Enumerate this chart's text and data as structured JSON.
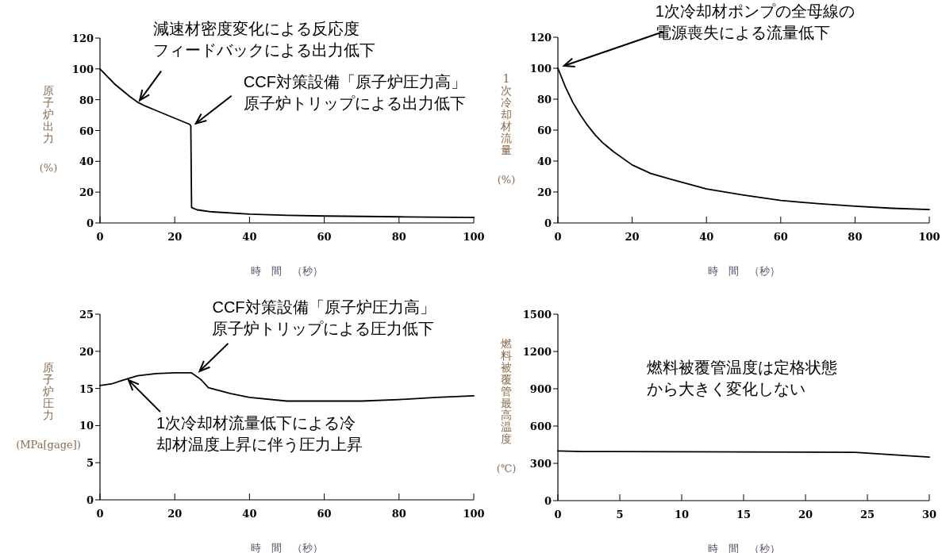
{
  "chart_data": [
    {
      "type": "line",
      "xlabel": "時　間　（秒）",
      "ylabel": "原子炉出力\n(%)",
      "xlim": [
        0,
        100
      ],
      "ylim": [
        0,
        120
      ],
      "xticks": [
        0,
        20,
        40,
        60,
        80,
        100
      ],
      "yticks": [
        0,
        20,
        40,
        60,
        80,
        100,
        120
      ],
      "series": [
        {
          "color": "#000000",
          "x": [
            0,
            2,
            4,
            6,
            8,
            10,
            12,
            15,
            20,
            24,
            24.3,
            24.5,
            26,
            30,
            40,
            50,
            60,
            80,
            100
          ],
          "values": [
            100,
            95,
            90,
            86,
            82,
            78.5,
            76,
            73,
            68,
            64,
            63,
            10,
            8.5,
            7.2,
            5.7,
            5,
            4.5,
            4,
            3.5
          ]
        }
      ],
      "annotations": [
        {
          "text": "減速材密度変化による反応度フィードバックによる出力低下",
          "x": 10,
          "y": 78
        },
        {
          "text": "CCF対策設備「原子炉圧力高」原子炉トリップによる出力低下",
          "x": 25,
          "y": 63
        }
      ]
    },
    {
      "type": "line",
      "xlabel": "時　間　（秒）",
      "ylabel": "1次冷却材流量\n(%)",
      "xlim": [
        0,
        100
      ],
      "ylim": [
        0,
        120
      ],
      "xticks": [
        0,
        20,
        40,
        60,
        80,
        100
      ],
      "yticks": [
        0,
        20,
        40,
        60,
        80,
        100,
        120
      ],
      "series": [
        {
          "color": "#000000",
          "x": [
            0,
            2,
            4,
            6,
            8,
            10,
            12,
            15,
            20,
            25,
            30,
            40,
            50,
            60,
            70,
            80,
            90,
            100
          ],
          "values": [
            100,
            88,
            78,
            70,
            63,
            57,
            52,
            46,
            37.5,
            32,
            28.5,
            22,
            18,
            14.5,
            12.5,
            10.8,
            9.5,
            8.7
          ]
        }
      ],
      "annotations": [
        {
          "text": "1次冷却材ポンプの全母線の電源喪失による流量低下",
          "x": 1,
          "y": 100
        }
      ]
    },
    {
      "type": "line",
      "xlabel": "時　間　（秒）",
      "ylabel": "原子炉圧力\n(MPa[gage])",
      "xlim": [
        0,
        100
      ],
      "ylim": [
        0,
        25
      ],
      "xticks": [
        0,
        20,
        40,
        60,
        80,
        100
      ],
      "yticks": [
        0,
        5,
        10,
        15,
        20,
        25
      ],
      "series": [
        {
          "color": "#000000",
          "x": [
            0,
            3,
            6,
            10,
            15,
            20,
            24.5,
            27,
            29,
            35,
            40,
            50,
            60,
            70,
            80,
            90,
            100
          ],
          "values": [
            15.4,
            15.6,
            16.1,
            16.7,
            17.0,
            17.1,
            17.1,
            16.2,
            15.1,
            14.3,
            13.8,
            13.3,
            13.3,
            13.3,
            13.5,
            13.8,
            14.0
          ]
        }
      ],
      "annotations": [
        {
          "text": "CCF対策設備「原子炉圧力高」原子炉トリップによる圧力低下",
          "x": 26,
          "y": 17
        },
        {
          "text": "1次冷却材流量低下による冷却材温度上昇に伴う圧力上昇",
          "x": 7,
          "y": 15.8
        }
      ]
    },
    {
      "type": "line",
      "xlabel": "時　間　（秒）",
      "ylabel": "燃料被覆管最高温度\n(℃)",
      "xlim": [
        0,
        30
      ],
      "ylim": [
        0,
        1500
      ],
      "xticks": [
        0,
        5,
        10,
        15,
        20,
        25,
        30
      ],
      "yticks": [
        0,
        300,
        600,
        900,
        1200,
        1500
      ],
      "series": [
        {
          "color": "#000000",
          "x": [
            0,
            2,
            10,
            20,
            24,
            27,
            30
          ],
          "values": [
            400,
            395,
            393,
            390,
            388,
            370,
            350
          ]
        }
      ],
      "annotations": [
        "燃料被覆管温度は定格状態から大きく変化しない"
      ]
    }
  ]
}
